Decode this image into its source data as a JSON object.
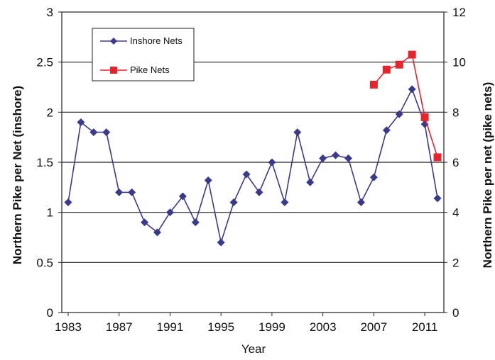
{
  "chart_data": {
    "type": "line",
    "title": "",
    "xlabel": "Year",
    "ylabel_left": "Northern Pike per Net (inshore)",
    "ylabel_right": "Northern Pike per net (pike nets)",
    "x_ticks": [
      "1983",
      "1987",
      "1991",
      "1995",
      "1999",
      "2003",
      "2007",
      "2011"
    ],
    "xlim": [
      1982.5,
      2012.5
    ],
    "ylim_left": [
      0,
      3
    ],
    "ylim_right": [
      0,
      12
    ],
    "y_ticks_left": [
      "0",
      "0.5",
      "1",
      "1.5",
      "2",
      "2.5",
      "3"
    ],
    "y_ticks_right": [
      "0",
      "2",
      "4",
      "6",
      "8",
      "10",
      "12"
    ],
    "grid": "horizontal",
    "legend_position": "top-left",
    "series": [
      {
        "name": "Inshore Nets",
        "axis": "left",
        "color": "#3a3a8c",
        "marker": "diamond",
        "x": [
          1983,
          1984,
          1985,
          1986,
          1987,
          1988,
          1989,
          1990,
          1991,
          1992,
          1993,
          1994,
          1995,
          1996,
          1997,
          1998,
          1999,
          2000,
          2001,
          2002,
          2003,
          2004,
          2005,
          2006,
          2007,
          2008,
          2009,
          2010,
          2011,
          2012
        ],
        "y": [
          1.1,
          1.9,
          1.8,
          1.8,
          1.2,
          1.2,
          0.9,
          0.8,
          1.0,
          1.16,
          0.9,
          1.32,
          0.7,
          1.1,
          1.38,
          1.2,
          1.5,
          1.1,
          1.8,
          1.3,
          1.54,
          1.57,
          1.54,
          1.1,
          1.35,
          1.82,
          1.98,
          2.23,
          1.88,
          1.14
        ]
      },
      {
        "name": "Pike Nets",
        "axis": "right",
        "color": "#e8242a",
        "marker": "square",
        "x": [
          2007,
          2008,
          2009,
          2010,
          2011,
          2012
        ],
        "y": [
          9.1,
          9.7,
          9.9,
          10.3,
          7.8,
          6.2
        ]
      }
    ]
  }
}
